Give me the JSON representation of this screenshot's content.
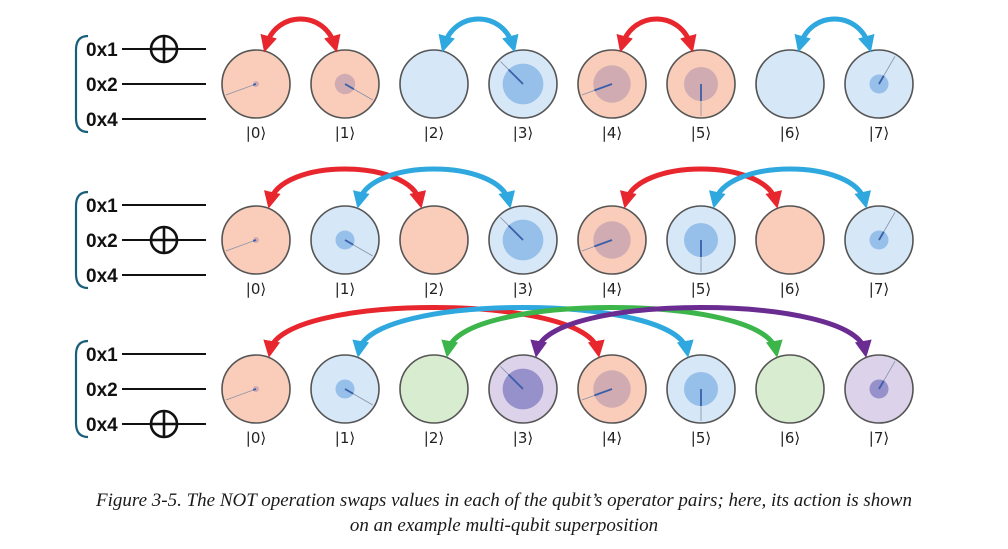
{
  "qubit_labels": [
    "0x1",
    "0x2",
    "0x4"
  ],
  "ket_labels": [
    "|0⟩",
    "|1⟩",
    "|2⟩",
    "|3⟩",
    "|4⟩",
    "|5⟩",
    "|6⟩",
    "|7⟩"
  ],
  "colors": {
    "red": "#e8262d",
    "blue": "#2ea8de",
    "green": "#3cb54a",
    "purple": "#6a2c91",
    "fill_red": "#f9cdb9",
    "fill_blue": "#d6e7f8",
    "fill_green": "#d8eccf",
    "fill_purple": "#dcd2ea"
  },
  "rows": [
    {
      "not_on": "0x1",
      "circle_colors": [
        "red",
        "red",
        "blue",
        "blue",
        "red",
        "red",
        "blue",
        "blue"
      ],
      "amplitudes": [
        0.08,
        0.3,
        0,
        0.6,
        0.55,
        0.5,
        0,
        0.28
      ],
      "phases_deg": [
        200,
        330,
        0,
        135,
        200,
        270,
        0,
        60
      ],
      "swaps": [
        {
          "from": 0,
          "to": 1,
          "color": "red"
        },
        {
          "from": 2,
          "to": 3,
          "color": "blue"
        },
        {
          "from": 4,
          "to": 5,
          "color": "red"
        },
        {
          "from": 6,
          "to": 7,
          "color": "blue"
        }
      ]
    },
    {
      "not_on": "0x2",
      "circle_colors": [
        "red",
        "blue",
        "red",
        "blue",
        "red",
        "blue",
        "red",
        "blue"
      ],
      "amplitudes": [
        0.08,
        0.28,
        0,
        0.6,
        0.55,
        0.5,
        0,
        0.28
      ],
      "phases_deg": [
        200,
        330,
        0,
        135,
        200,
        270,
        0,
        60
      ],
      "swaps": [
        {
          "from": 0,
          "to": 2,
          "color": "red"
        },
        {
          "from": 1,
          "to": 3,
          "color": "blue"
        },
        {
          "from": 4,
          "to": 6,
          "color": "red"
        },
        {
          "from": 5,
          "to": 7,
          "color": "blue"
        }
      ]
    },
    {
      "not_on": "0x4",
      "circle_colors": [
        "red",
        "blue",
        "green",
        "purple",
        "red",
        "blue",
        "green",
        "purple"
      ],
      "amplitudes": [
        0.08,
        0.28,
        0,
        0.6,
        0.55,
        0.5,
        0,
        0.28
      ],
      "phases_deg": [
        200,
        330,
        0,
        135,
        200,
        270,
        0,
        60
      ],
      "swaps": [
        {
          "from": 0,
          "to": 4,
          "color": "red"
        },
        {
          "from": 1,
          "to": 5,
          "color": "blue"
        },
        {
          "from": 2,
          "to": 6,
          "color": "green"
        },
        {
          "from": 3,
          "to": 7,
          "color": "purple"
        }
      ]
    }
  ],
  "caption_line1": "Figure 3-5. The NOT operation swaps values in each of the qubit’s operator pairs; here, its action is shown",
  "caption_line2": "on an example multi-qubit superposition"
}
